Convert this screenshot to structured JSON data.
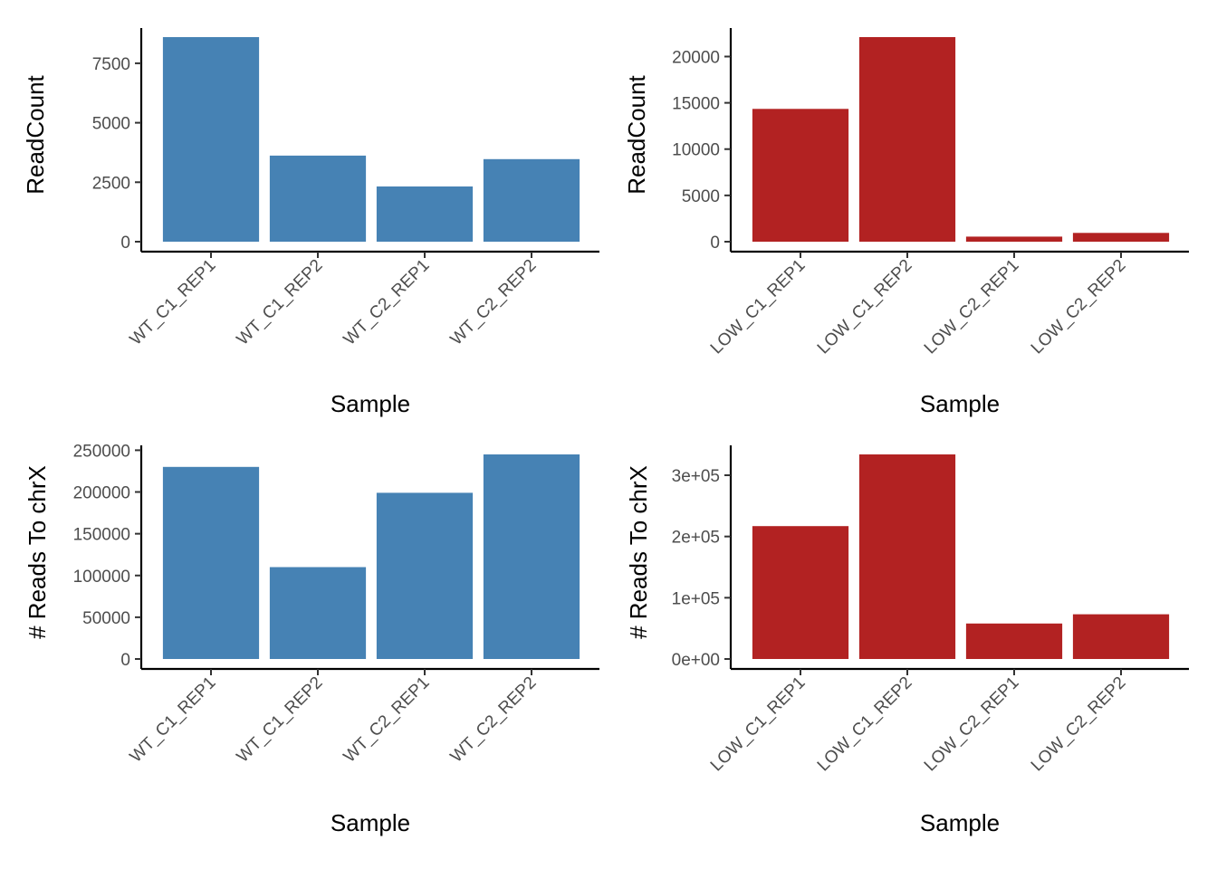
{
  "chart_data": [
    {
      "type": "bar",
      "color": "#4682B4",
      "categories": [
        "WT_C1_REP1",
        "WT_C1_REP2",
        "WT_C2_REP1",
        "WT_C2_REP2"
      ],
      "values": [
        8600,
        3620,
        2320,
        3470
      ],
      "xlabel": "Sample",
      "ylabel": "ReadCount",
      "ylim": [
        0,
        8600
      ],
      "yticks": [
        0,
        2500,
        5000,
        7500
      ],
      "ytick_labels": [
        "0",
        "2500",
        "5000",
        "7500"
      ]
    },
    {
      "type": "bar",
      "color": "#B22222",
      "categories": [
        "LOW_C1_REP1",
        "LOW_C1_REP2",
        "LOW_C2_REP1",
        "LOW_C2_REP2"
      ],
      "values": [
        14350,
        22100,
        550,
        950
      ],
      "xlabel": "Sample",
      "ylabel": "ReadCount",
      "ylim": [
        0,
        22100
      ],
      "yticks": [
        0,
        5000,
        10000,
        15000,
        20000
      ],
      "ytick_labels": [
        "0",
        "5000",
        "10000",
        "15000",
        "20000"
      ]
    },
    {
      "type": "bar",
      "color": "#4682B4",
      "categories": [
        "WT_C1_REP1",
        "WT_C1_REP2",
        "WT_C2_REP1",
        "WT_C2_REP2"
      ],
      "values": [
        230000,
        110000,
        199000,
        245000
      ],
      "xlabel": "Sample",
      "ylabel": "# Reads To chrX",
      "ylim": [
        0,
        245000
      ],
      "yticks": [
        0,
        50000,
        100000,
        150000,
        200000,
        250000
      ],
      "ytick_labels": [
        "0",
        "50000",
        "100000",
        "150000",
        "200000",
        "250000"
      ]
    },
    {
      "type": "bar",
      "color": "#B22222",
      "categories": [
        "LOW_C1_REP1",
        "LOW_C1_REP2",
        "LOW_C2_REP1",
        "LOW_C2_REP2"
      ],
      "values": [
        217000,
        334000,
        58000,
        73000
      ],
      "xlabel": "Sample",
      "ylabel": "# Reads To chrX",
      "ylim": [
        0,
        334000
      ],
      "yticks": [
        0,
        100000,
        200000,
        300000
      ],
      "ytick_labels": [
        "0e+00",
        "1e+05",
        "2e+05",
        "3e+05"
      ]
    }
  ]
}
